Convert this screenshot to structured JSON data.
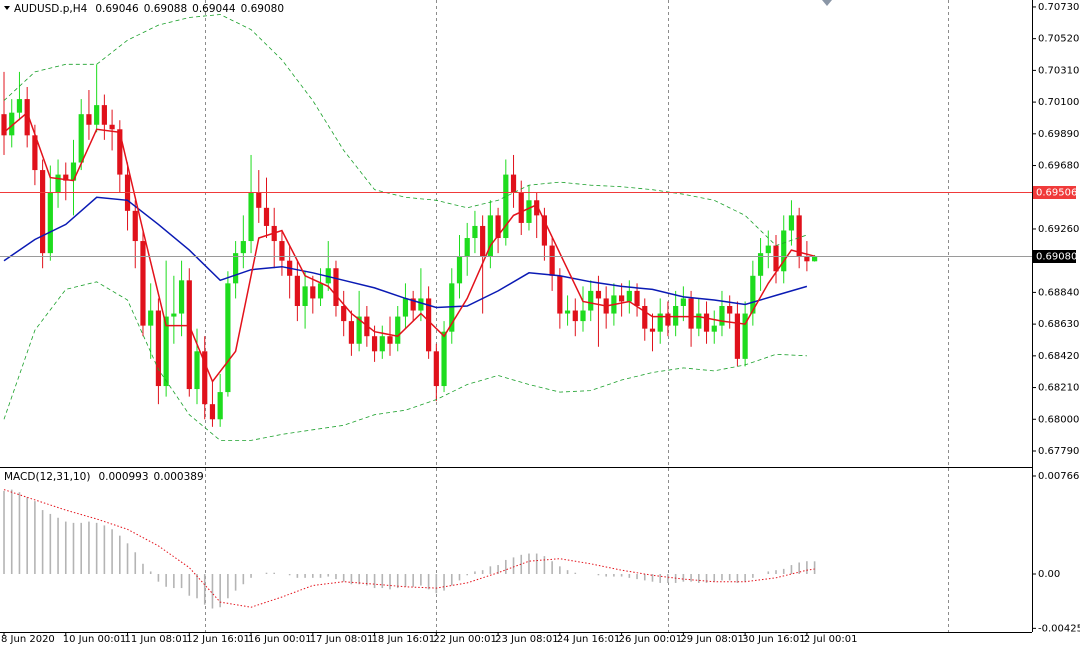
{
  "chart_data": [
    {
      "type": "candlestick",
      "title": "AUDUSD.p,H4",
      "info_values": [
        {
          "value": 0.69046,
          "label": "0.69046"
        },
        {
          "value": 0.69088,
          "label": "0.69088"
        },
        {
          "value": 0.69044,
          "label": "0.69044"
        },
        {
          "value": 0.6908,
          "label": "0.69080"
        }
      ],
      "up_color": "#1edc1e",
      "down_color": "#e0111b",
      "open": [
        0.7002,
        0.6988,
        0.7003,
        0.7012,
        0.6988,
        0.6965,
        0.691,
        0.695,
        0.6962,
        0.6958,
        0.697,
        0.7002,
        0.6995,
        0.7008,
        0.6995,
        0.6992,
        0.6962,
        0.6938,
        0.6918,
        0.6862,
        0.6872,
        0.6822,
        0.6868,
        0.687,
        0.6892,
        0.682,
        0.6845,
        0.681,
        0.68,
        0.6818,
        0.689,
        0.691,
        0.6918,
        0.695,
        0.694,
        0.6928,
        0.6918,
        0.6905,
        0.6895,
        0.6875,
        0.6888,
        0.688,
        0.689,
        0.69,
        0.6875,
        0.6865,
        0.685,
        0.6868,
        0.6855,
        0.6845,
        0.6855,
        0.685,
        0.6868,
        0.688,
        0.6872,
        0.688,
        0.6845,
        0.6822,
        0.6858,
        0.689,
        0.6908,
        0.692,
        0.6928,
        0.6908,
        0.6935,
        0.692,
        0.6962,
        0.695,
        0.693,
        0.6945,
        0.6935,
        0.6915,
        0.6895,
        0.687,
        0.6872,
        0.6865,
        0.6872,
        0.6885,
        0.688,
        0.687,
        0.6882,
        0.6878,
        0.6885,
        0.6875,
        0.686,
        0.6858,
        0.687,
        0.6862,
        0.6875,
        0.688,
        0.686,
        0.687,
        0.6858,
        0.6862,
        0.6875,
        0.687,
        0.684,
        0.687,
        0.6895,
        0.691,
        0.6915,
        0.6898,
        0.6925,
        0.6935,
        0.6908,
        0.69046
      ],
      "high": [
        0.703,
        0.7012,
        0.703,
        0.702,
        0.6995,
        0.6972,
        0.6968,
        0.6972,
        0.697,
        0.6985,
        0.7012,
        0.7018,
        0.7035,
        0.7015,
        0.7005,
        0.6998,
        0.697,
        0.6945,
        0.6925,
        0.689,
        0.688,
        0.6905,
        0.6895,
        0.6905,
        0.69,
        0.686,
        0.6855,
        0.6825,
        0.683,
        0.6898,
        0.6918,
        0.6935,
        0.6975,
        0.6965,
        0.696,
        0.694,
        0.6925,
        0.6915,
        0.6905,
        0.6898,
        0.6895,
        0.69,
        0.6918,
        0.6905,
        0.6885,
        0.6872,
        0.6885,
        0.6875,
        0.6862,
        0.6862,
        0.6868,
        0.6875,
        0.689,
        0.6885,
        0.69,
        0.6888,
        0.685,
        0.6865,
        0.69,
        0.6922,
        0.693,
        0.6938,
        0.6935,
        0.6945,
        0.694,
        0.6972,
        0.6975,
        0.6958,
        0.6955,
        0.695,
        0.694,
        0.692,
        0.69,
        0.6882,
        0.688,
        0.6888,
        0.6892,
        0.6895,
        0.6888,
        0.689,
        0.689,
        0.6892,
        0.689,
        0.688,
        0.687,
        0.688,
        0.6878,
        0.6885,
        0.6888,
        0.6885,
        0.688,
        0.6878,
        0.6872,
        0.6885,
        0.6882,
        0.6878,
        0.6878,
        0.6905,
        0.692,
        0.6925,
        0.6922,
        0.6935,
        0.6945,
        0.694,
        0.6918,
        0.69088
      ],
      "low": [
        0.6975,
        0.698,
        0.6998,
        0.698,
        0.6955,
        0.69,
        0.6905,
        0.694,
        0.6945,
        0.6935,
        0.6965,
        0.6985,
        0.699,
        0.6985,
        0.6978,
        0.695,
        0.6925,
        0.69,
        0.6855,
        0.684,
        0.681,
        0.6815,
        0.685,
        0.6855,
        0.6815,
        0.681,
        0.68,
        0.6795,
        0.6795,
        0.6815,
        0.688,
        0.69,
        0.691,
        0.693,
        0.692,
        0.69,
        0.6895,
        0.688,
        0.6865,
        0.686,
        0.687,
        0.6875,
        0.6885,
        0.6868,
        0.6855,
        0.6842,
        0.6845,
        0.6848,
        0.6838,
        0.684,
        0.6842,
        0.6845,
        0.686,
        0.6865,
        0.6865,
        0.684,
        0.6812,
        0.6818,
        0.685,
        0.688,
        0.6895,
        0.691,
        0.687,
        0.69,
        0.691,
        0.6915,
        0.694,
        0.6922,
        0.6925,
        0.692,
        0.6905,
        0.6885,
        0.686,
        0.6862,
        0.6855,
        0.6858,
        0.6865,
        0.6848,
        0.686,
        0.6862,
        0.6868,
        0.687,
        0.6868,
        0.6852,
        0.6845,
        0.685,
        0.6855,
        0.6855,
        0.6865,
        0.6848,
        0.6855,
        0.685,
        0.685,
        0.6855,
        0.686,
        0.6835,
        0.6835,
        0.6862,
        0.6885,
        0.69,
        0.689,
        0.689,
        0.6915,
        0.69,
        0.6898,
        0.69044
      ],
      "close": [
        0.6988,
        0.7003,
        0.7012,
        0.6988,
        0.6965,
        0.691,
        0.695,
        0.6962,
        0.6958,
        0.697,
        0.7002,
        0.6995,
        0.7008,
        0.6995,
        0.6992,
        0.6962,
        0.6938,
        0.6918,
        0.6862,
        0.6872,
        0.6822,
        0.6868,
        0.687,
        0.6892,
        0.682,
        0.6845,
        0.681,
        0.68,
        0.6818,
        0.689,
        0.691,
        0.6918,
        0.695,
        0.694,
        0.6928,
        0.6918,
        0.6905,
        0.6895,
        0.6875,
        0.6888,
        0.688,
        0.689,
        0.69,
        0.6875,
        0.6865,
        0.685,
        0.6868,
        0.6855,
        0.6845,
        0.6855,
        0.685,
        0.6868,
        0.688,
        0.6872,
        0.688,
        0.6845,
        0.6822,
        0.6858,
        0.689,
        0.6908,
        0.692,
        0.6928,
        0.6908,
        0.6935,
        0.692,
        0.6962,
        0.695,
        0.693,
        0.6945,
        0.6935,
        0.6915,
        0.6895,
        0.687,
        0.6872,
        0.6865,
        0.6872,
        0.6885,
        0.688,
        0.687,
        0.6882,
        0.6878,
        0.6885,
        0.6875,
        0.686,
        0.6858,
        0.687,
        0.6862,
        0.6875,
        0.688,
        0.686,
        0.687,
        0.6858,
        0.6862,
        0.6875,
        0.687,
        0.684,
        0.687,
        0.6895,
        0.691,
        0.6915,
        0.6898,
        0.6925,
        0.6935,
        0.6908,
        0.69046,
        0.6908
      ],
      "lines": [
        {
          "color": "#1aa02a",
          "dash": true,
          "x": [
            0,
            4,
            8,
            12,
            16,
            20,
            24,
            28,
            32,
            36,
            40,
            44,
            48,
            52,
            56,
            60,
            64,
            68,
            72,
            76,
            80,
            84,
            88,
            92,
            96,
            100,
            104
          ],
          "values": [
            0.7011,
            0.703,
            0.7035,
            0.7035,
            0.7051,
            0.7061,
            0.7066,
            0.7068,
            0.7058,
            0.7038,
            0.7011,
            0.6978,
            0.6952,
            0.6947,
            0.6945,
            0.694,
            0.6945,
            0.6955,
            0.6957,
            0.6955,
            0.6954,
            0.6952,
            0.6949,
            0.6945,
            0.6935,
            0.6915,
            0.6922
          ]
        },
        {
          "color": "#1aa02a",
          "dash": true,
          "x": [
            0,
            4,
            8,
            12,
            16,
            20,
            24,
            28,
            32,
            36,
            40,
            44,
            48,
            52,
            56,
            60,
            64,
            68,
            72,
            76,
            80,
            84,
            88,
            92,
            96,
            100,
            104
          ],
          "values": [
            0.68,
            0.6859,
            0.6886,
            0.6891,
            0.6879,
            0.6833,
            0.6803,
            0.6786,
            0.6786,
            0.679,
            0.6793,
            0.6796,
            0.6803,
            0.6806,
            0.6813,
            0.6823,
            0.6829,
            0.6823,
            0.6818,
            0.6819,
            0.6826,
            0.6831,
            0.6834,
            0.6832,
            0.6836,
            0.6843,
            0.6842
          ]
        },
        {
          "color": "#0a1ab4",
          "dash": false,
          "x": [
            0,
            4,
            8,
            12,
            16,
            20,
            24,
            28,
            32,
            36,
            40,
            44,
            48,
            52,
            56,
            60,
            64,
            68,
            72,
            76,
            80,
            84,
            88,
            92,
            96,
            100,
            104
          ],
          "values": [
            0.6905,
            0.6919,
            0.6929,
            0.6947,
            0.6945,
            0.6929,
            0.6912,
            0.6892,
            0.6899,
            0.6901,
            0.6897,
            0.6892,
            0.6887,
            0.688,
            0.6874,
            0.6875,
            0.6885,
            0.6897,
            0.6895,
            0.6891,
            0.6888,
            0.6886,
            0.6881,
            0.6879,
            0.6876,
            0.6882,
            0.6888
          ]
        },
        {
          "color": "#e3121b",
          "dash": false,
          "x": [
            0,
            3,
            6,
            9,
            12,
            15,
            18,
            21,
            24,
            27,
            30,
            33,
            36,
            39,
            42,
            45,
            48,
            51,
            54,
            57,
            60,
            63,
            66,
            69,
            72,
            75,
            78,
            81,
            84,
            87,
            90,
            93,
            96,
            99,
            102,
            105
          ],
          "values": [
            0.699,
            0.7003,
            0.696,
            0.6958,
            0.6992,
            0.699,
            0.6925,
            0.6862,
            0.6862,
            0.6825,
            0.6845,
            0.692,
            0.6925,
            0.6895,
            0.6888,
            0.687,
            0.6858,
            0.6855,
            0.687,
            0.6855,
            0.688,
            0.6915,
            0.6935,
            0.6942,
            0.691,
            0.6878,
            0.6875,
            0.6878,
            0.6868,
            0.6868,
            0.6868,
            0.6865,
            0.6863,
            0.689,
            0.6912,
            0.6908
          ]
        }
      ],
      "hlines": [
        {
          "value": 0.69506,
          "label": "0.69506",
          "color": "#f03a3a"
        },
        {
          "value": 0.6908,
          "label": "0.69080",
          "color": "#9a9a9a"
        }
      ],
      "ylim": [
        0.67684,
        0.70776
      ],
      "yticks": [
        {
          "value": 0.7073,
          "label": "0.70730"
        },
        {
          "value": 0.7052,
          "label": "0.70520"
        },
        {
          "value": 0.7031,
          "label": "0.70310"
        },
        {
          "value": 0.701,
          "label": "0.70100"
        },
        {
          "value": 0.6989,
          "label": "0.69890"
        },
        {
          "value": 0.6968,
          "label": "0.69680"
        },
        {
          "value": 0.6926,
          "label": "0.69260"
        },
        {
          "value": 0.6884,
          "label": "0.68840"
        },
        {
          "value": 0.6863,
          "label": "0.68630"
        },
        {
          "value": 0.6842,
          "label": "0.68420"
        },
        {
          "value": 0.6821,
          "label": "0.68210"
        },
        {
          "value": 0.68,
          "label": "0.68000"
        },
        {
          "value": 0.6779,
          "label": "0.67790"
        }
      ],
      "grid": false,
      "xlim": [
        -0.52,
        133.16
      ],
      "xgrid": [
        26,
        56,
        86,
        122.3
      ],
      "xticks": [
        {
          "value": 0,
          "label": "8 Jun 2020"
        },
        {
          "value": 8,
          "label": "10 Jun 00:01"
        },
        {
          "value": 16,
          "label": "11 Jun 08:01"
        },
        {
          "value": 24,
          "label": "12 Jun 16:01"
        },
        {
          "value": 32,
          "label": "16 Jun 00:01"
        },
        {
          "value": 40,
          "label": "17 Jun 08:01"
        },
        {
          "value": 48,
          "label": "18 Jun 16:01"
        },
        {
          "value": 56,
          "label": "22 Jun 00:01"
        },
        {
          "value": 64,
          "label": "23 Jun 08:01"
        },
        {
          "value": 72,
          "label": "24 Jun 16:01"
        },
        {
          "value": 80,
          "label": "26 Jun 00:01"
        },
        {
          "value": 88,
          "label": "29 Jun 08:01"
        },
        {
          "value": 96,
          "label": "30 Jun 16:01"
        },
        {
          "value": 104,
          "label": "2 Jul 00:01"
        }
      ]
    },
    {
      "type": "macd",
      "title": "MACD(12,31,10)",
      "info_values": [
        0.000993,
        0.000389
      ],
      "hist_color": "#b4b4b4",
      "signal_color": "#e3121b",
      "values": [
        0.0065,
        0.0066,
        0.0064,
        0.006,
        0.0057,
        0.005,
        0.0047,
        0.0044,
        0.0041,
        0.004,
        0.004,
        0.0041,
        0.004,
        0.0038,
        0.0035,
        0.003,
        0.0024,
        0.0017,
        0.0008,
        0.0002,
        -0.0006,
        -0.001,
        -0.0011,
        -0.0011,
        -0.0017,
        -0.0019,
        -0.0024,
        -0.0027,
        -0.0026,
        -0.0019,
        -0.0013,
        -0.0008,
        -0.0003,
        0,
        0.0001,
        0.0001,
        0,
        -0.0001,
        -0.0003,
        -0.0003,
        -0.0003,
        -0.0003,
        -0.0002,
        -0.0004,
        -0.0006,
        -0.0008,
        -0.0008,
        -0.0009,
        -0.0011,
        -0.0011,
        -0.0012,
        -0.0011,
        -0.001,
        -0.001,
        -0.0009,
        -0.0012,
        -0.0015,
        -0.0013,
        -0.0009,
        -0.0005,
        -0.0001,
        0.0002,
        0.0003,
        0.0006,
        0.0007,
        0.0011,
        0.0013,
        0.0015,
        0.0016,
        0.0016,
        0.0014,
        0.001,
        0.0006,
        0.0003,
        0.0001,
        0,
        0,
        -0.0001,
        -0.0002,
        -0.0002,
        -0.0002,
        -0.0003,
        -0.0004,
        -0.0005,
        -0.0006,
        -0.0007,
        -0.0007,
        -0.0007,
        -0.0006,
        -0.0006,
        -0.0007,
        -0.0007,
        -0.0006,
        -0.0005,
        -0.0005,
        -0.0007,
        -0.0006,
        -0.0003,
        0,
        0.0002,
        0.0003,
        0.0004,
        0.0007,
        0.0009,
        0.001,
        0.000993
      ],
      "signal": {
        "x": [
          0,
          4,
          8,
          12,
          16,
          20,
          24,
          28,
          32,
          36,
          40,
          44,
          48,
          52,
          56,
          60,
          64,
          68,
          72,
          76,
          80,
          84,
          88,
          92,
          96,
          100,
          104,
          105
        ],
        "values": [
          0.0066,
          0.0058,
          0.005,
          0.0043,
          0.0035,
          0.0022,
          0.0005,
          -0.0022,
          -0.0026,
          -0.0018,
          -0.0009,
          -0.0006,
          -0.0008,
          -0.001,
          -0.0011,
          -0.0007,
          0.0001,
          0.001,
          0.0012,
          0.0008,
          0.0003,
          -0.0001,
          -0.0004,
          -0.0006,
          -0.0006,
          -0.0003,
          0.0003,
          0.000389
        ]
      },
      "ylim": [
        -0.004537,
        0.008292
      ],
      "yticks": [
        0.007666,
        {
          "value": 0,
          "label": "0.00"
        },
        -0.004252
      ],
      "xlim": [
        -0.52,
        133.16
      ],
      "xgrid": [
        26,
        56,
        86,
        122.3
      ]
    }
  ]
}
